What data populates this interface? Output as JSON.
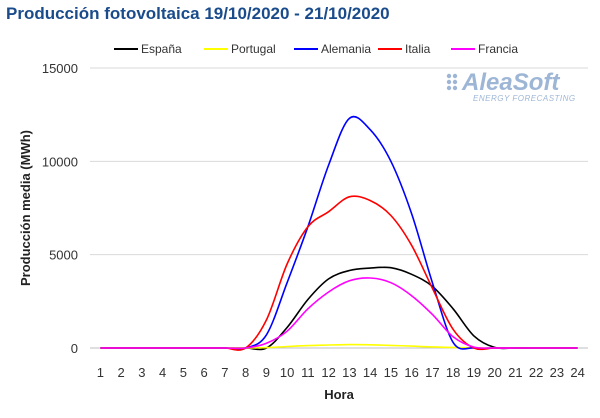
{
  "chart_data": {
    "type": "line",
    "title": "Producción fotovoltaica 19/10/2020 - 21/10/2020",
    "xlabel": "Hora",
    "ylabel": "Producción media (MWh)",
    "x": [
      1,
      2,
      3,
      4,
      5,
      6,
      7,
      8,
      9,
      10,
      11,
      12,
      13,
      14,
      15,
      16,
      17,
      18,
      19,
      20,
      21,
      22,
      23,
      24
    ],
    "ylim": [
      0,
      15000
    ],
    "yticks": [
      0,
      5000,
      10000,
      15000
    ],
    "grid": true,
    "legend_position": "top",
    "series": [
      {
        "name": "España",
        "color": "#000000",
        "values": [
          0,
          0,
          0,
          0,
          0,
          0,
          0,
          0,
          0,
          1100,
          2600,
          3700,
          4150,
          4280,
          4300,
          3950,
          3300,
          2100,
          650,
          30,
          0,
          0,
          0,
          0
        ]
      },
      {
        "name": "Portugal",
        "color": "#ffff00",
        "values": [
          0,
          0,
          0,
          0,
          0,
          0,
          0,
          0,
          20,
          80,
          130,
          160,
          180,
          170,
          140,
          100,
          60,
          30,
          10,
          0,
          0,
          0,
          0,
          0
        ]
      },
      {
        "name": "Alemania",
        "color": "#0000ff",
        "values": [
          0,
          0,
          0,
          0,
          0,
          0,
          0,
          0,
          700,
          3500,
          6500,
          9800,
          12300,
          11700,
          10000,
          7200,
          3500,
          300,
          0,
          0,
          0,
          0,
          0,
          0
        ]
      },
      {
        "name": "Italia",
        "color": "#ff0000",
        "values": [
          0,
          0,
          0,
          0,
          0,
          0,
          0,
          0,
          1500,
          4500,
          6500,
          7300,
          8100,
          7900,
          7100,
          5500,
          3200,
          1000,
          0,
          0,
          0,
          0,
          0,
          0
        ]
      },
      {
        "name": "Francia",
        "color": "#ff00ff",
        "values": [
          0,
          0,
          0,
          0,
          0,
          0,
          0,
          0,
          250,
          900,
          2100,
          3000,
          3600,
          3750,
          3500,
          2800,
          1800,
          600,
          50,
          0,
          0,
          0,
          0,
          0
        ]
      }
    ]
  },
  "watermark": {
    "brand": "AleaSoft",
    "tagline": "ENERGY FORECASTING"
  }
}
